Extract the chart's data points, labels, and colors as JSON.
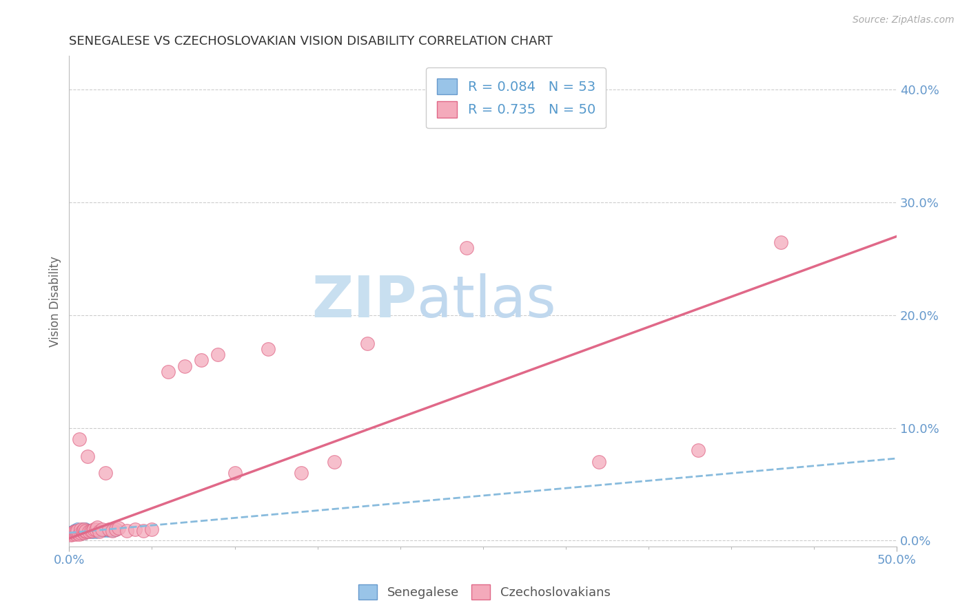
{
  "title": "SENEGALESE VS CZECHOSLOVAKIAN VISION DISABILITY CORRELATION CHART",
  "source_text": "Source: ZipAtlas.com",
  "ylabel": "Vision Disability",
  "xlim": [
    0.0,
    0.5
  ],
  "ylim": [
    -0.005,
    0.43
  ],
  "yticks": [
    0.0,
    0.1,
    0.2,
    0.3,
    0.4
  ],
  "ytick_labels": [
    "0.0%",
    "10.0%",
    "20.0%",
    "30.0%",
    "40.0%"
  ],
  "blue_color": "#99c4e8",
  "blue_edge_color": "#6699cc",
  "pink_color": "#f4aabb",
  "pink_edge_color": "#e06888",
  "blue_line_color": "#88bbdd",
  "pink_line_color": "#e06888",
  "grid_color": "#cccccc",
  "title_color": "#333333",
  "tick_color": "#6699cc",
  "watermark_zip_color": "#c8dff0",
  "watermark_atlas_color": "#c0d8ee",
  "background_color": "#ffffff",
  "senegalese_x": [
    0.001,
    0.002,
    0.002,
    0.003,
    0.003,
    0.003,
    0.004,
    0.004,
    0.004,
    0.005,
    0.005,
    0.005,
    0.005,
    0.006,
    0.006,
    0.006,
    0.007,
    0.007,
    0.007,
    0.008,
    0.008,
    0.008,
    0.009,
    0.009,
    0.009,
    0.01,
    0.01,
    0.01,
    0.011,
    0.011,
    0.012,
    0.012,
    0.013,
    0.013,
    0.014,
    0.014,
    0.015,
    0.015,
    0.016,
    0.016,
    0.017,
    0.017,
    0.018,
    0.019,
    0.02,
    0.021,
    0.022,
    0.023,
    0.024,
    0.025,
    0.026,
    0.027,
    0.028
  ],
  "senegalese_y": [
    0.008,
    0.007,
    0.009,
    0.006,
    0.008,
    0.01,
    0.005,
    0.007,
    0.009,
    0.006,
    0.008,
    0.01,
    0.011,
    0.007,
    0.009,
    0.01,
    0.006,
    0.008,
    0.01,
    0.007,
    0.009,
    0.011,
    0.006,
    0.008,
    0.01,
    0.007,
    0.009,
    0.011,
    0.008,
    0.01,
    0.007,
    0.009,
    0.008,
    0.01,
    0.007,
    0.009,
    0.008,
    0.01,
    0.007,
    0.009,
    0.008,
    0.01,
    0.009,
    0.008,
    0.009,
    0.008,
    0.009,
    0.008,
    0.009,
    0.008,
    0.009,
    0.008,
    0.009
  ],
  "czecho_x": [
    0.001,
    0.002,
    0.002,
    0.003,
    0.003,
    0.004,
    0.004,
    0.005,
    0.005,
    0.006,
    0.006,
    0.007,
    0.007,
    0.008,
    0.008,
    0.009,
    0.009,
    0.01,
    0.01,
    0.011,
    0.012,
    0.013,
    0.014,
    0.015,
    0.016,
    0.017,
    0.018,
    0.02,
    0.022,
    0.024,
    0.026,
    0.028,
    0.03,
    0.035,
    0.04,
    0.045,
    0.05,
    0.06,
    0.07,
    0.08,
    0.09,
    0.1,
    0.12,
    0.14,
    0.16,
    0.18,
    0.24,
    0.32,
    0.38,
    0.43
  ],
  "czecho_y": [
    0.005,
    0.007,
    0.006,
    0.007,
    0.008,
    0.006,
    0.008,
    0.007,
    0.009,
    0.006,
    0.09,
    0.007,
    0.01,
    0.008,
    0.009,
    0.007,
    0.01,
    0.008,
    0.009,
    0.075,
    0.008,
    0.009,
    0.009,
    0.01,
    0.01,
    0.012,
    0.008,
    0.01,
    0.06,
    0.01,
    0.009,
    0.01,
    0.011,
    0.009,
    0.01,
    0.009,
    0.01,
    0.15,
    0.155,
    0.16,
    0.165,
    0.06,
    0.17,
    0.06,
    0.07,
    0.175,
    0.26,
    0.07,
    0.08,
    0.265
  ],
  "blue_trendline_x": [
    0.0,
    0.5
  ],
  "blue_trendline_y": [
    0.007,
    0.073
  ],
  "pink_trendline_x": [
    0.0,
    0.5
  ],
  "pink_trendline_y": [
    0.002,
    0.27
  ]
}
